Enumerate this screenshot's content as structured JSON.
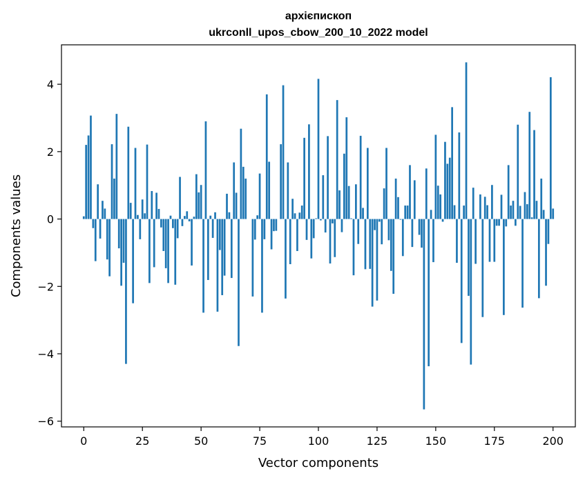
{
  "chart_data": {
    "type": "bar",
    "title": "архієпископ",
    "subtitle": "ukrconll_upos_cbow_200_10_2022 model",
    "xlabel": "Vector components",
    "ylabel": "Components values",
    "xlim": [
      -9.5,
      209.5
    ],
    "ylim": [
      -6.17,
      5.17
    ],
    "xticks": [
      0,
      25,
      50,
      75,
      100,
      125,
      150,
      175,
      200
    ],
    "yticks": [
      -6,
      -4,
      -2,
      0,
      2,
      4
    ],
    "ytick_labels": [
      "−6",
      "−4",
      "−2",
      "0",
      "2",
      "4"
    ],
    "bar_color": "#1f77b4",
    "values": [
      0.08,
      2.2,
      2.48,
      3.07,
      -0.27,
      -1.25,
      1.03,
      -0.58,
      0.54,
      0.31,
      -1.2,
      -1.7,
      2.22,
      1.2,
      3.12,
      -0.87,
      -1.98,
      -1.3,
      -4.3,
      2.74,
      0.48,
      -2.5,
      2.11,
      0.12,
      -0.6,
      0.58,
      0.17,
      2.21,
      -1.9,
      0.83,
      -1.43,
      0.78,
      0.3,
      -0.25,
      -0.95,
      -1.46,
      -1.9,
      0.1,
      -0.27,
      -1.95,
      -0.57,
      1.25,
      -0.21,
      0.09,
      0.23,
      -0.07,
      -1.38,
      0.07,
      1.33,
      0.79,
      1.01,
      -2.78,
      2.9,
      -1.81,
      0.1,
      -0.56,
      0.2,
      -2.75,
      -0.92,
      -2.26,
      -1.68,
      0.75,
      0.2,
      -1.75,
      1.68,
      0.78,
      -3.77,
      2.68,
      1.55,
      1.2,
      0.0,
      0.0,
      -2.3,
      -0.61,
      0.11,
      1.35,
      -2.78,
      -0.6,
      3.7,
      1.7,
      -0.9,
      -0.36,
      -0.35,
      0.0,
      2.22,
      3.97,
      -2.36,
      1.68,
      -1.34,
      0.6,
      0.17,
      -0.95,
      0.19,
      0.4,
      2.41,
      -0.62,
      2.81,
      -1.17,
      -0.57,
      0.02,
      4.16,
      -0.04,
      1.3,
      -0.4,
      2.46,
      -1.32,
      -0.13,
      -1.13,
      3.53,
      0.85,
      -0.39,
      1.94,
      3.02,
      0.98,
      0.02,
      -1.67,
      1.03,
      -0.74,
      2.47,
      0.33,
      -1.49,
      2.11,
      -1.48,
      -2.6,
      -0.33,
      -2.42,
      -0.08,
      -0.75,
      0.91,
      2.11,
      -0.63,
      -1.54,
      -2.22,
      1.2,
      0.65,
      -0.02,
      -1.1,
      0.4,
      0.4,
      1.6,
      -0.83,
      1.15,
      0.0,
      -0.47,
      -0.85,
      -5.65,
      1.5,
      -4.37,
      0.27,
      -1.28,
      2.5,
      0.99,
      0.73,
      -0.08,
      2.29,
      1.64,
      1.82,
      3.32,
      0.41,
      -1.3,
      2.57,
      -3.68,
      0.4,
      4.65,
      -2.28,
      -4.32,
      0.93,
      -1.33,
      0.0,
      0.73,
      -2.91,
      0.66,
      0.41,
      -1.27,
      1.01,
      -1.27,
      -0.2,
      -0.2,
      0.72,
      -2.85,
      -0.22,
      1.6,
      0.4,
      0.54,
      -0.2,
      2.8,
      0.39,
      -2.63,
      0.8,
      0.44,
      3.18,
      0.05,
      2.64,
      0.54,
      -2.35,
      1.2,
      0.27,
      -1.98,
      -0.74,
      4.21,
      0.31
    ]
  }
}
